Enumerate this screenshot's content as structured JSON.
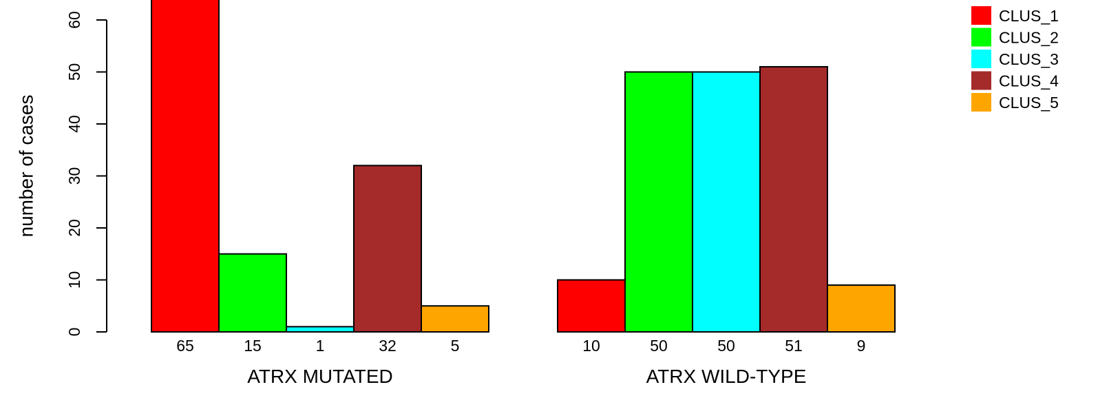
{
  "chart_data": {
    "type": "bar",
    "title": "",
    "xlabel": "",
    "ylabel": "number of cases",
    "ylim": [
      0,
      66
    ],
    "yticks": [
      0,
      10,
      20,
      30,
      40,
      50,
      60
    ],
    "grid": false,
    "legend_position": "top-right",
    "groups": [
      {
        "label": "ATRX MUTATED",
        "bars": [
          {
            "series": "CLUS_1",
            "value": 65,
            "label": "65"
          },
          {
            "series": "CLUS_2",
            "value": 15,
            "label": "15"
          },
          {
            "series": "CLUS_3",
            "value": 1,
            "label": "1"
          },
          {
            "series": "CLUS_4",
            "value": 32,
            "label": "32"
          },
          {
            "series": "CLUS_5",
            "value": 5,
            "label": "5"
          }
        ]
      },
      {
        "label": "ATRX WILD-TYPE",
        "bars": [
          {
            "series": "CLUS_1",
            "value": 10,
            "label": "10"
          },
          {
            "series": "CLUS_2",
            "value": 50,
            "label": "50"
          },
          {
            "series": "CLUS_3",
            "value": 50,
            "label": "50"
          },
          {
            "series": "CLUS_4",
            "value": 51,
            "label": "51"
          },
          {
            "series": "CLUS_5",
            "value": 9,
            "label": "9"
          }
        ]
      }
    ],
    "legend": [
      {
        "name": "CLUS_1",
        "color": "#ff0000"
      },
      {
        "name": "CLUS_2",
        "color": "#00ff00"
      },
      {
        "name": "CLUS_3",
        "color": "#00ffff"
      },
      {
        "name": "CLUS_4",
        "color": "#a52a2a"
      },
      {
        "name": "CLUS_5",
        "color": "#ffa500"
      }
    ]
  }
}
